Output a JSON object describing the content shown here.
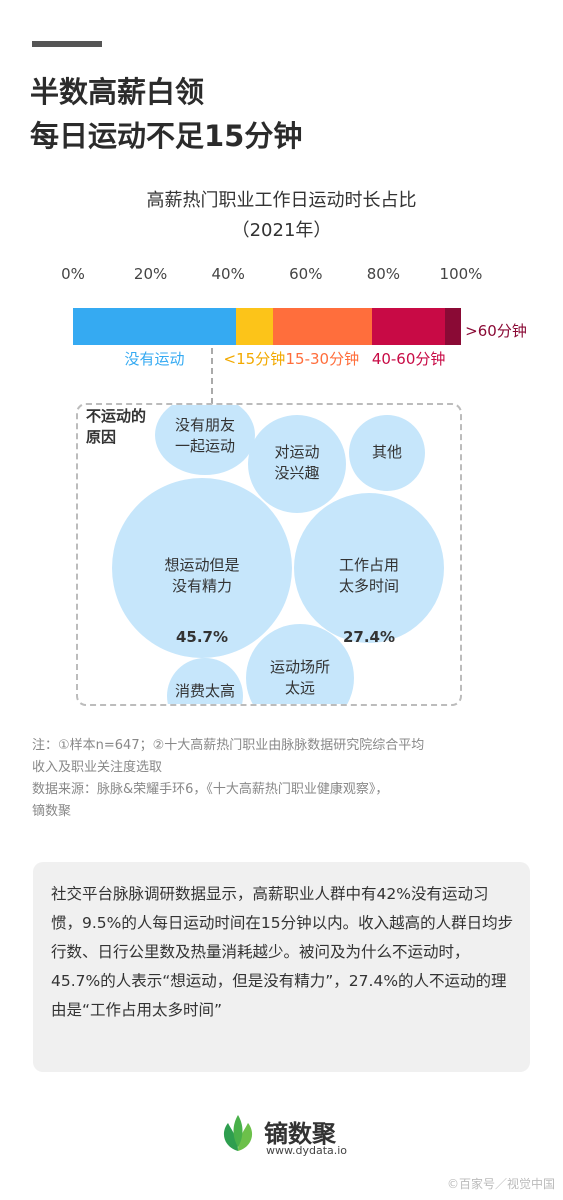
{
  "headline": {
    "line1": "半数高薪白领",
    "line2": "每日运动不足15分钟"
  },
  "chart_data": {
    "type": "bar",
    "title": "高薪热门职业工作日运动时长占比",
    "subtitle": "（2021年）",
    "xlim": [
      0,
      100
    ],
    "ticks": [
      "0%",
      "20%",
      "40%",
      "60%",
      "80%",
      "100%"
    ],
    "categories": [
      "没有运动",
      "<15分钟",
      "15-30分钟",
      "40-60分钟",
      ">60分钟"
    ],
    "values": [
      42,
      9.5,
      25.5,
      19,
      4
    ],
    "colors": [
      "#35aaf2",
      "#fcc419",
      "#ff6e3c",
      "#c80a45",
      "#8a0a35"
    ]
  },
  "reasons": {
    "title": "不运动的原因",
    "bubbles": [
      {
        "label": "没有朋友\n一起运动",
        "pct": ""
      },
      {
        "label": "对运动\n没兴趣",
        "pct": ""
      },
      {
        "label": "其他",
        "pct": ""
      },
      {
        "label": "想运动但是\n没有精力",
        "pct": "45.7%"
      },
      {
        "label": "工作占用\n太多时间",
        "pct": "27.4%"
      },
      {
        "label": "运动场所\n太远",
        "pct": ""
      },
      {
        "label": "消费太高",
        "pct": ""
      }
    ]
  },
  "notes": {
    "line1": "注：①样本n=647；②十大高薪热门职业由脉脉数据研究院综合平均",
    "line2": "收入及职业关注度选取",
    "line3": "数据来源：脉脉&荣耀手环6，《十大高薪热门职业健康观察》，",
    "line4": "镝数聚"
  },
  "summary": "社交平台脉脉调研数据显示，高薪职业人群中有42%没有运动习惯，9.5%的人每日运动时间在15分钟以内。收入越高的人群日均步行数、日行公里数及热量消耗越少。被问及为什么不运动时，45.7%的人表示“想运动，但是没有精力”，27.4%的人不运动的理由是“工作占用太多时间”",
  "brand": {
    "name": "镝数聚",
    "url": "www.dydata.io",
    "logo_icon": "leaf-logo-icon"
  },
  "watermark": "©百家号／视觉中国"
}
